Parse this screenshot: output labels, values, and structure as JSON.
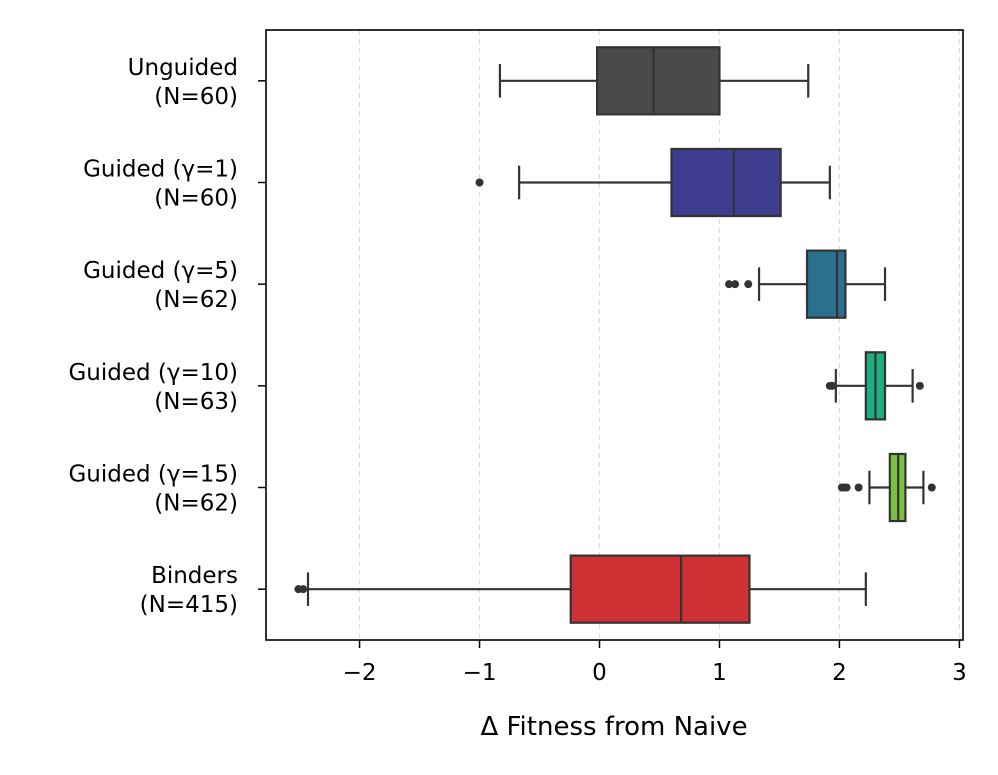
{
  "chart_data": {
    "type": "boxplot",
    "orientation": "horizontal",
    "xlabel": "Δ Fitness from Naive",
    "ylabel": "",
    "xlim": [
      -2.78,
      3.03
    ],
    "xticks": [
      -2,
      -1,
      0,
      1,
      2,
      3
    ],
    "xtick_labels": [
      "−2",
      "−1",
      "0",
      "1",
      "2",
      "3"
    ],
    "grid": "vertical dashed",
    "groups": [
      {
        "label_line1": "Unguided",
        "label_line2": "(N=60)",
        "color": "#4a4a4a",
        "whisker_low": -0.83,
        "q1": -0.02,
        "median": 0.45,
        "q3": 1.0,
        "whisker_high": 1.74,
        "outliers": []
      },
      {
        "label_line1": "Guided (γ=1)",
        "label_line2": "(N=60)",
        "color": "#3f3d8f",
        "whisker_low": -0.67,
        "q1": 0.6,
        "median": 1.12,
        "q3": 1.51,
        "whisker_high": 1.92,
        "outliers": [
          -1.0
        ]
      },
      {
        "label_line1": "Guided (γ=5)",
        "label_line2": "(N=62)",
        "color": "#2a7190",
        "whisker_low": 1.33,
        "q1": 1.73,
        "median": 1.98,
        "q3": 2.05,
        "whisker_high": 2.38,
        "outliers": [
          1.08,
          1.13,
          1.24
        ]
      },
      {
        "label_line1": "Guided (γ=10)",
        "label_line2": "(N=63)",
        "color": "#1fae82",
        "whisker_low": 1.97,
        "q1": 2.22,
        "median": 2.3,
        "q3": 2.38,
        "whisker_high": 2.61,
        "outliers": [
          1.92,
          1.94,
          2.67
        ]
      },
      {
        "label_line1": "Guided (γ=15)",
        "label_line2": "(N=62)",
        "color": "#79c043",
        "whisker_low": 2.25,
        "q1": 2.42,
        "median": 2.49,
        "q3": 2.55,
        "whisker_high": 2.7,
        "outliers": [
          2.02,
          2.04,
          2.06,
          2.16,
          2.77
        ]
      },
      {
        "label_line1": "Binders",
        "label_line2": "(N=415)",
        "color": "#cf3033",
        "whisker_low": -2.43,
        "q1": -0.24,
        "median": 0.68,
        "q3": 1.25,
        "whisker_high": 2.22,
        "outliers": [
          -2.51,
          -2.47
        ]
      }
    ]
  }
}
